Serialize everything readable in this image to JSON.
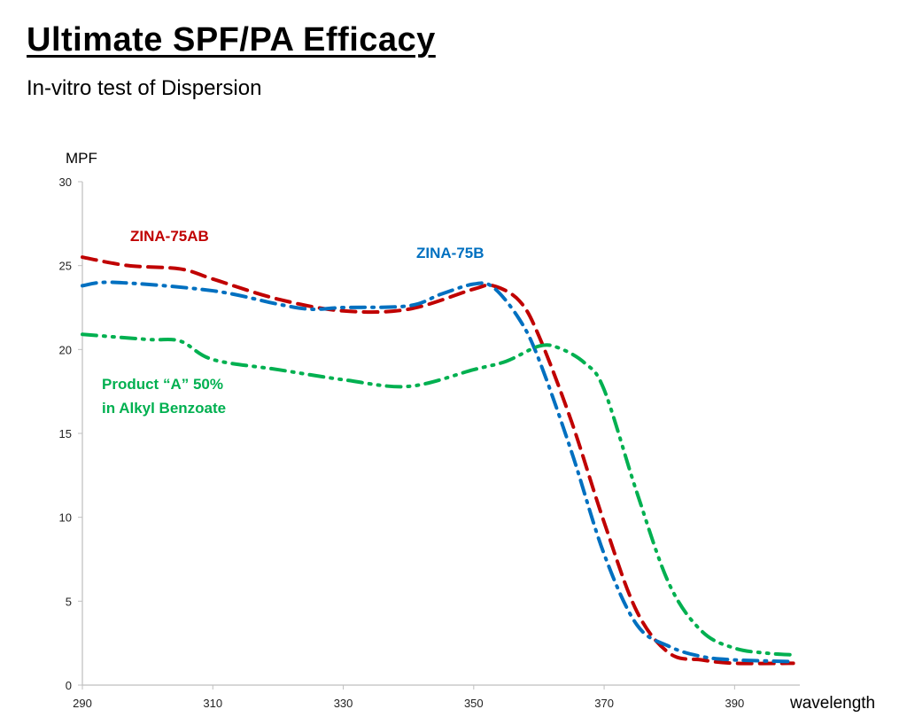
{
  "title": "Ultimate SPF/PA Efficacy",
  "subtitle": "In-vitro test of Dispersion",
  "chart_data": {
    "type": "line",
    "ylabel": "MPF",
    "xlabel": "wavelength",
    "xlim": [
      290,
      400
    ],
    "ylim": [
      0,
      30
    ],
    "xticks": [
      290,
      310,
      330,
      350,
      370,
      390
    ],
    "yticks": [
      0,
      5,
      10,
      15,
      20,
      25,
      30
    ],
    "grid": false,
    "series": [
      {
        "name": "ZINA-75AB",
        "label": "ZINA-75AB",
        "color": "#C00000",
        "dash": "dash",
        "x": [
          290,
          297,
          305,
          310,
          320,
          330,
          340,
          350,
          353,
          357,
          360,
          365,
          370,
          375,
          380,
          385,
          390,
          399
        ],
        "y": [
          25.5,
          25.0,
          24.8,
          24.2,
          23.0,
          22.3,
          22.4,
          23.6,
          23.8,
          22.9,
          20.8,
          15.7,
          9.7,
          4.4,
          1.9,
          1.5,
          1.3,
          1.3
        ]
      },
      {
        "name": "ZINA-75B",
        "label": "ZINA-75B",
        "color": "#0070C0",
        "dash": "dash-dot",
        "x": [
          290,
          295,
          310,
          320,
          325,
          330,
          340,
          345,
          350,
          353,
          357,
          360,
          365,
          370,
          375,
          380,
          385,
          390,
          399
        ],
        "y": [
          23.8,
          24.0,
          23.5,
          22.7,
          22.4,
          22.5,
          22.6,
          23.3,
          23.9,
          23.7,
          21.8,
          19.4,
          13.9,
          7.8,
          3.6,
          2.3,
          1.7,
          1.5,
          1.4
        ]
      },
      {
        "name": "Product A 50% in Alkyl Benzoate",
        "label": [
          "Product “A” 50%",
          "in Alkyl Benzoate"
        ],
        "color": "#00B050",
        "dash": "dash-dot-dot",
        "x": [
          290,
          300,
          305,
          310,
          320,
          330,
          340,
          350,
          355,
          360,
          363,
          367,
          370,
          375,
          380,
          385,
          390,
          395,
          399
        ],
        "y": [
          20.9,
          20.6,
          20.5,
          19.4,
          18.8,
          18.2,
          17.8,
          18.8,
          19.3,
          20.2,
          20.1,
          19.2,
          17.6,
          11.5,
          6.0,
          3.2,
          2.2,
          1.9,
          1.8
        ]
      }
    ]
  }
}
